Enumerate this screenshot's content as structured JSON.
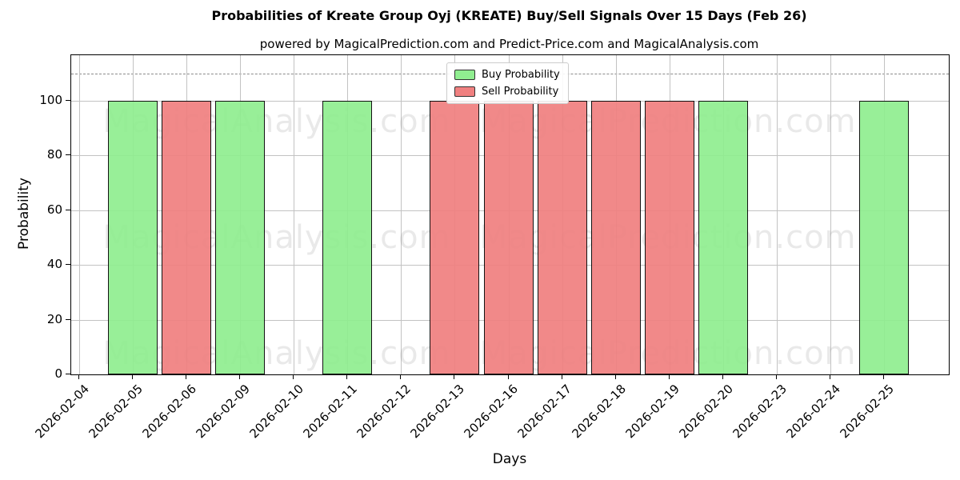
{
  "title": "Probabilities of Kreate Group Oyj (KREATE) Buy/Sell Signals Over 15 Days (Feb 26)",
  "subtitle": "powered by MagicalPrediction.com and Predict-Price.com and MagicalAnalysis.com",
  "watermarks": [
    "MagicalAnalysis.com",
    "MagicalPrediction.com"
  ],
  "legend": {
    "items": [
      {
        "label": "Buy Probability",
        "color": "#90EE90"
      },
      {
        "label": "Sell Probability",
        "color": "#F08080"
      }
    ],
    "position": "upper center"
  },
  "chart_data": {
    "type": "bar",
    "title": "Probabilities of Kreate Group Oyj (KREATE) Buy/Sell Signals Over 15 Days (Feb 26)",
    "xlabel": "Days",
    "ylabel": "Probability",
    "categories": [
      "2026-02-04",
      "2026-02-05",
      "2026-02-06",
      "2026-02-09",
      "2026-02-10",
      "2026-02-11",
      "2026-02-12",
      "2026-02-13",
      "2026-02-16",
      "2026-02-17",
      "2026-02-18",
      "2026-02-19",
      "2026-02-20",
      "2026-02-23",
      "2026-02-24",
      "2026-02-25"
    ],
    "series": [
      {
        "name": "Buy Probability",
        "color": "#90EE90",
        "values": [
          0,
          100,
          0,
          100,
          0,
          100,
          0,
          0,
          0,
          0,
          0,
          0,
          100,
          0,
          0,
          100
        ]
      },
      {
        "name": "Sell Probability",
        "color": "#F08080",
        "values": [
          0,
          0,
          100,
          0,
          0,
          0,
          0,
          100,
          100,
          100,
          100,
          100,
          0,
          0,
          0,
          0
        ]
      }
    ],
    "ylim": [
      0,
      116.7
    ],
    "yticks": [
      0,
      20,
      40,
      60,
      80,
      100
    ],
    "dashed_line_y": 110,
    "grid": true,
    "legend_position": "upper center"
  }
}
